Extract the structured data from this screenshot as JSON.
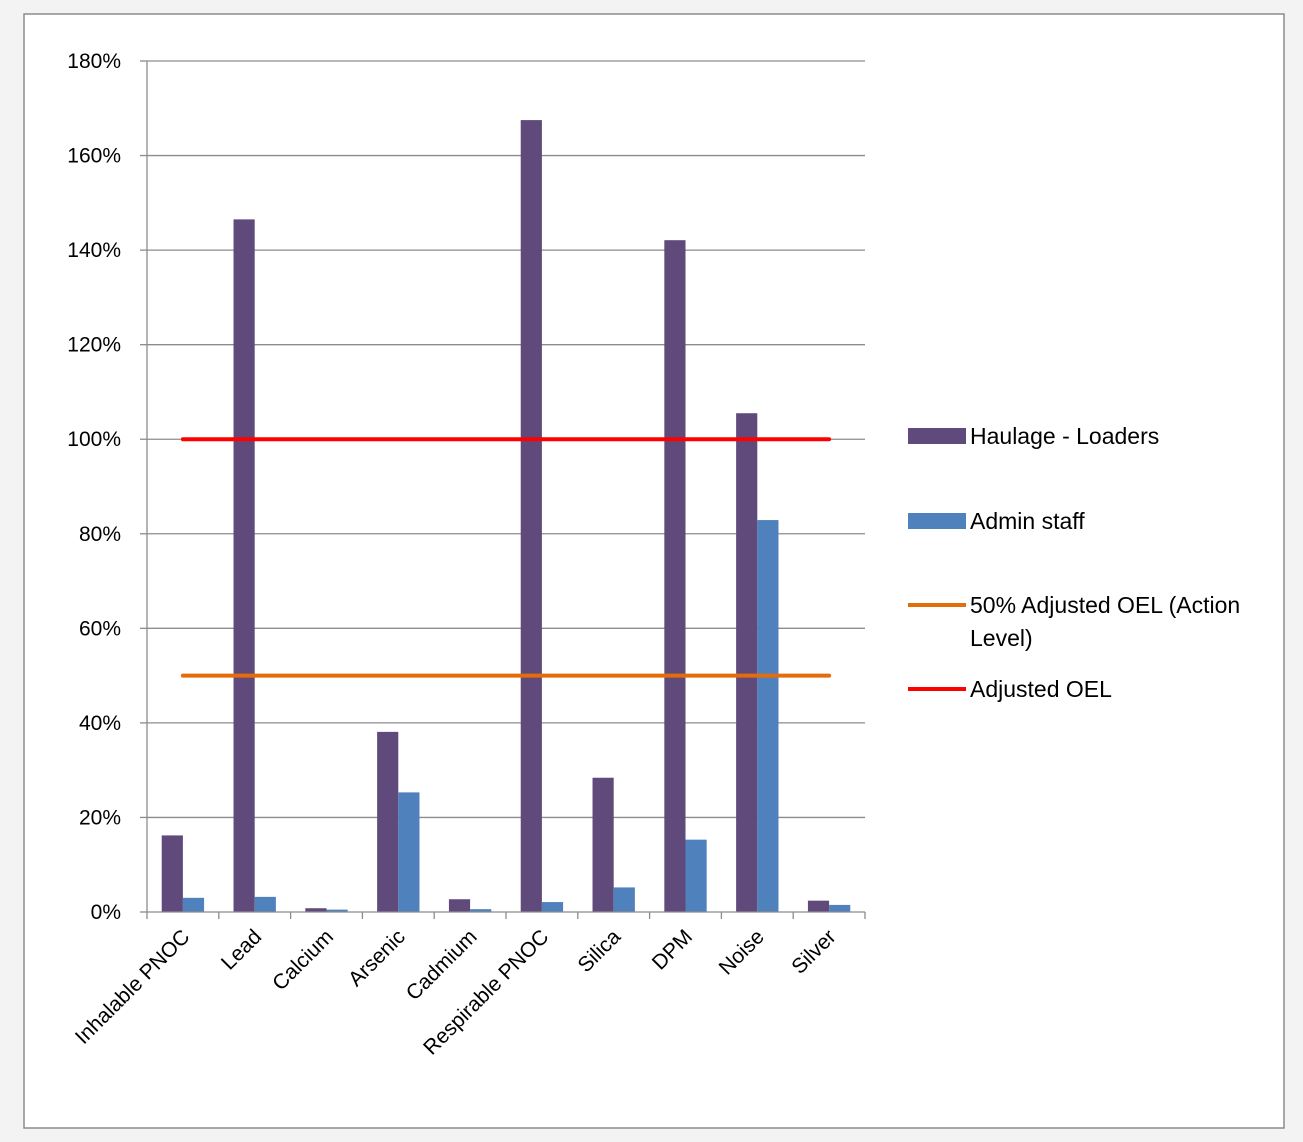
{
  "chart_data": {
    "type": "bar",
    "title": "",
    "xlabel": "",
    "ylabel": "",
    "ylim": [
      0,
      1.8
    ],
    "y_ticks": [
      "0%",
      "20%",
      "40%",
      "60%",
      "80%",
      "100%",
      "120%",
      "140%",
      "160%",
      "180%"
    ],
    "grid": "horizontal",
    "legend_position": "right",
    "categories": [
      "Inhalable PNOC",
      "Lead",
      "Calcium",
      "Arsenic",
      "Cadmium",
      "Respirable PNOC",
      "Silica",
      "DPM",
      "Noise",
      "Silver"
    ],
    "series": [
      {
        "name": "Haulage - Loaders",
        "type": "bar",
        "color": "#604a7b",
        "values": [
          0.162,
          1.465,
          0.008,
          0.381,
          0.027,
          1.675,
          0.284,
          1.421,
          1.055,
          0.024
        ]
      },
      {
        "name": "Admin staff",
        "type": "bar",
        "color": "#4f81bd",
        "values": [
          0.03,
          0.032,
          0.005,
          0.253,
          0.006,
          0.021,
          0.052,
          0.153,
          0.829,
          0.015
        ]
      }
    ],
    "lines": [
      {
        "name": "50% Adjusted OEL (Action Level)",
        "color": "#e46c0a",
        "value": 0.5
      },
      {
        "name": "Adjusted OEL",
        "color": "#ff0000",
        "value": 1.0
      }
    ],
    "legend": [
      {
        "label": "Haulage - Loaders",
        "kind": "bar",
        "color": "#604a7b"
      },
      {
        "label": "Admin staff",
        "kind": "bar",
        "color": "#4f81bd"
      },
      {
        "label_lines": [
          "50% Adjusted OEL (Action",
          "Level)"
        ],
        "kind": "line",
        "color": "#e46c0a"
      },
      {
        "label": "Adjusted OEL",
        "kind": "line",
        "color": "#ff0000"
      }
    ]
  }
}
